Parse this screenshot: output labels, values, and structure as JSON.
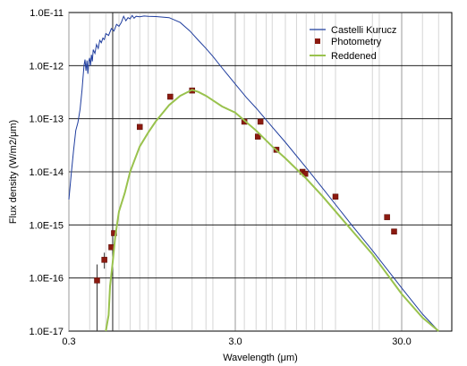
{
  "chart_data": {
    "type": "line",
    "title": "",
    "xlabel": "Wavelength (μm)",
    "ylabel": "Flux density (W/m2/μm)",
    "xscale": "log",
    "yscale": "log",
    "xlim": [
      0.3,
      60
    ],
    "ylim": [
      1e-17,
      1e-11
    ],
    "grid": true,
    "legend_position": "top-right",
    "x_ticks": [
      {
        "value": 0.3,
        "label": "0.3"
      },
      {
        "value": 3.0,
        "label": "3.0"
      },
      {
        "value": 30.0,
        "label": "30.0"
      }
    ],
    "y_ticks": [
      {
        "value": 1e-17,
        "label": "1.0E-17"
      },
      {
        "value": 1e-16,
        "label": "1.0E-16"
      },
      {
        "value": 1e-15,
        "label": "1.0E-15"
      },
      {
        "value": 1e-14,
        "label": "1.0E-14"
      },
      {
        "value": 1e-13,
        "label": "1.0E-13"
      },
      {
        "value": 1e-12,
        "label": "1.0E-12"
      },
      {
        "value": 1e-11,
        "label": "1.0E-11"
      }
    ],
    "series": [
      {
        "name": "Castelli Kurucz",
        "kind": "line",
        "color": "#1f3d9e",
        "points": [
          [
            0.3,
            3e-15
          ],
          [
            0.31,
            9e-15
          ],
          [
            0.32,
            2.5e-14
          ],
          [
            0.33,
            6e-14
          ],
          [
            0.34,
            8.5e-14
          ],
          [
            0.35,
            1.5e-13
          ],
          [
            0.36,
            3.5e-13
          ],
          [
            0.365,
            6e-13
          ],
          [
            0.37,
            1e-12
          ],
          [
            0.375,
            1.3e-12
          ],
          [
            0.38,
            8e-13
          ],
          [
            0.385,
            1.25e-12
          ],
          [
            0.39,
            7e-13
          ],
          [
            0.395,
            1.2e-12
          ],
          [
            0.4,
            1.4e-12
          ],
          [
            0.405,
            1e-12
          ],
          [
            0.41,
            1.6e-12
          ],
          [
            0.415,
            1.2e-12
          ],
          [
            0.42,
            2e-12
          ],
          [
            0.43,
            1.7e-12
          ],
          [
            0.44,
            2.5e-12
          ],
          [
            0.45,
            2.1e-12
          ],
          [
            0.46,
            3e-12
          ],
          [
            0.47,
            2.7e-12
          ],
          [
            0.48,
            3.3e-12
          ],
          [
            0.49,
            3.1e-12
          ],
          [
            0.5,
            4e-12
          ],
          [
            0.52,
            3.7e-12
          ],
          [
            0.54,
            5e-12
          ],
          [
            0.56,
            4.5e-12
          ],
          [
            0.58,
            6e-12
          ],
          [
            0.6,
            5.5e-12
          ],
          [
            0.62,
            6.5e-12
          ],
          [
            0.64,
            8.5e-12
          ],
          [
            0.66,
            7e-12
          ],
          [
            0.68,
            8e-12
          ],
          [
            0.7,
            7.6e-12
          ],
          [
            0.72,
            8.8e-12
          ],
          [
            0.74,
            7.8e-12
          ],
          [
            0.76,
            8.5e-12
          ],
          [
            0.8,
            8.3e-12
          ],
          [
            0.85,
            8.6e-12
          ],
          [
            0.9,
            8.5e-12
          ],
          [
            1.0,
            8.4e-12
          ],
          [
            1.2,
            8e-12
          ],
          [
            1.4,
            6.5e-12
          ],
          [
            1.6,
            4.5e-12
          ],
          [
            1.8,
            3e-12
          ],
          [
            2.0,
            2.1e-12
          ],
          [
            2.2,
            1.5e-12
          ],
          [
            2.5,
            9e-13
          ],
          [
            3.0,
            4.5e-13
          ],
          [
            3.5,
            2.5e-13
          ],
          [
            4.0,
            1.6e-13
          ],
          [
            5.0,
            7e-14
          ],
          [
            6.0,
            3.6e-14
          ],
          [
            8.0,
            1.2e-14
          ],
          [
            10.0,
            5e-15
          ],
          [
            15.0,
            1e-15
          ],
          [
            20.0,
            3.3e-16
          ],
          [
            30.0,
            6.5e-17
          ],
          [
            40.0,
            2.1e-17
          ],
          [
            50.0,
            9e-18
          ]
        ]
      },
      {
        "name": "Photometry",
        "kind": "points",
        "color": "#8b1a10",
        "points": [
          [
            0.443,
            9e-17
          ],
          [
            0.49,
            2.2e-16
          ],
          [
            0.54,
            3.8e-16
          ],
          [
            0.56,
            7e-16
          ],
          [
            0.8,
            7e-14
          ],
          [
            1.22,
            2.6e-13
          ],
          [
            1.65,
            3.4e-13
          ],
          [
            3.4,
            8.8e-14
          ],
          [
            4.1,
            4.6e-14
          ],
          [
            4.25,
            8.8e-14
          ],
          [
            5.3,
            2.6e-14
          ],
          [
            7.6,
            1e-14
          ],
          [
            7.9,
            9.2e-15
          ],
          [
            12.0,
            3.4e-15
          ],
          [
            24.5,
            1.4e-15
          ],
          [
            27.0,
            7.5e-16
          ]
        ],
        "error_bars": [
          {
            "x": 0.443,
            "low": 1e-17,
            "high": 1.8e-16
          },
          {
            "x": 0.49,
            "low": 1.5e-16,
            "high": 3e-16
          }
        ]
      },
      {
        "name": "Reddened",
        "kind": "line",
        "color": "#99c24d",
        "points": [
          [
            0.5,
            1e-17
          ],
          [
            0.52,
            2e-17
          ],
          [
            0.53,
            7e-17
          ],
          [
            0.55,
            2e-16
          ],
          [
            0.57,
            6e-16
          ],
          [
            0.6,
            1.8e-15
          ],
          [
            0.65,
            4e-15
          ],
          [
            0.7,
            1e-14
          ],
          [
            0.8,
            3e-14
          ],
          [
            0.9,
            5.5e-14
          ],
          [
            1.0,
            9e-14
          ],
          [
            1.2,
            1.8e-13
          ],
          [
            1.4,
            2.7e-13
          ],
          [
            1.65,
            3.5e-13
          ],
          [
            1.8,
            3.2e-13
          ],
          [
            2.0,
            2.7e-13
          ],
          [
            2.5,
            1.7e-13
          ],
          [
            3.0,
            1.3e-13
          ],
          [
            4.0,
            6e-14
          ],
          [
            5.0,
            3e-14
          ],
          [
            6.0,
            1.8e-14
          ],
          [
            8.0,
            7.5e-15
          ],
          [
            10.0,
            3.5e-15
          ],
          [
            15.0,
            8e-16
          ],
          [
            20.0,
            2.8e-16
          ],
          [
            30.0,
            5e-17
          ],
          [
            40.0,
            1.8e-17
          ],
          [
            50.0,
            7e-18
          ]
        ]
      }
    ],
    "extra_vertical_gridlines": [
      0.6,
      1.25,
      1.65,
      2.2,
      3.4,
      4.6,
      12.0,
      22.0
    ]
  }
}
